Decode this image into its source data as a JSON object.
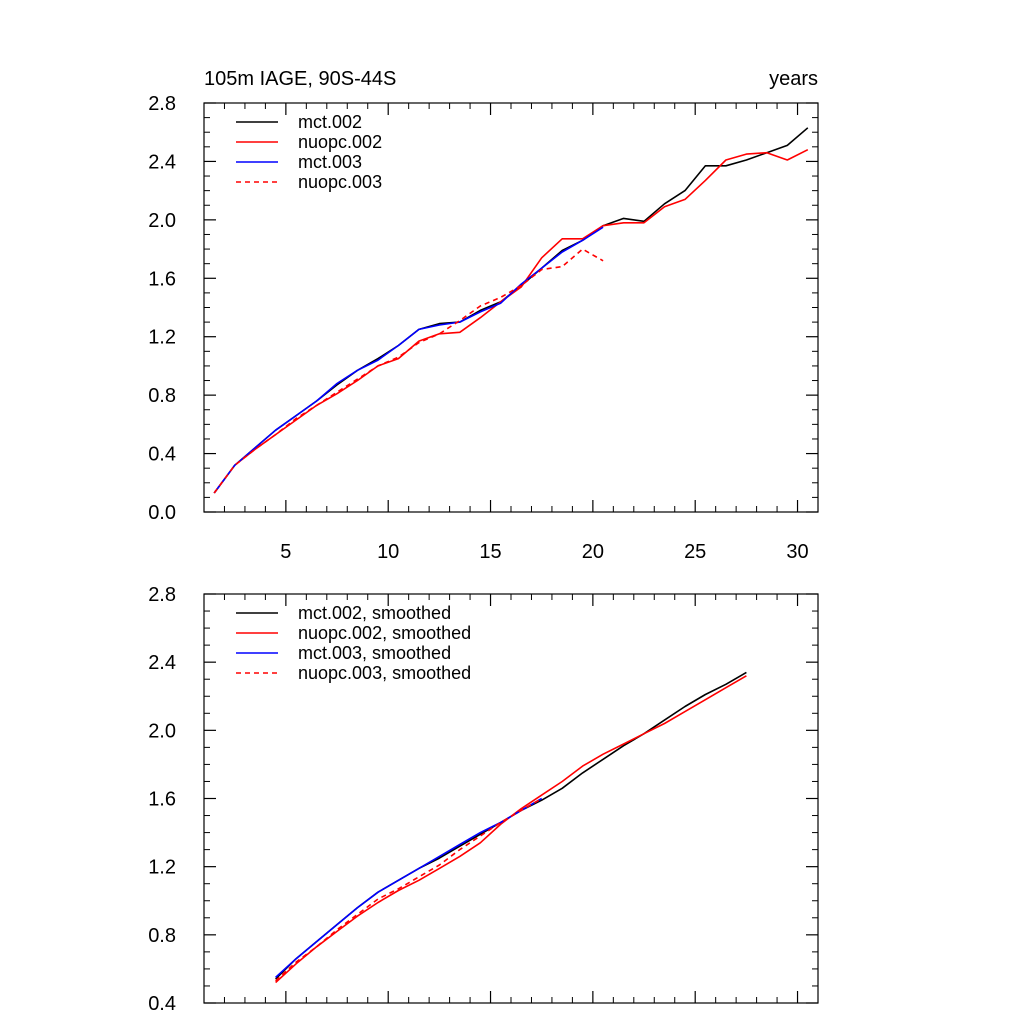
{
  "chart_data": [
    {
      "type": "line",
      "title": "105m IAGE, 90S-44S",
      "units": "years",
      "xlim": [
        1,
        31
      ],
      "ylim": [
        0.0,
        2.8
      ],
      "xticks": [
        5,
        10,
        15,
        20,
        25,
        30
      ],
      "yticks": [
        0.0,
        0.4,
        0.8,
        1.2,
        1.6,
        2.0,
        2.4,
        2.8
      ],
      "ytick_labels": [
        "0.0",
        "0.4",
        "0.8",
        "1.2",
        "1.6",
        "2.0",
        "2.4",
        "2.8"
      ],
      "xtick_labels": [
        "5",
        "10",
        "15",
        "20",
        "25",
        "30"
      ],
      "legend_position": "top-left",
      "series": [
        {
          "name": "mct.002",
          "color": "#000000",
          "dash": "solid",
          "x": [
            1.5,
            2.5,
            3.5,
            4.5,
            5.5,
            6.5,
            7.5,
            8.5,
            9.5,
            10.5,
            11.5,
            12.5,
            13.5,
            14.5,
            15.5,
            16.5,
            17.5,
            18.5,
            19.5,
            20.5,
            21.5,
            22.5,
            23.5,
            24.5,
            25.5,
            26.5,
            27.5,
            28.5,
            29.5,
            30.5
          ],
          "y": [
            0.13,
            0.32,
            0.44,
            0.56,
            0.66,
            0.76,
            0.87,
            0.97,
            1.05,
            1.14,
            1.25,
            1.29,
            1.3,
            1.38,
            1.44,
            1.55,
            1.67,
            1.79,
            1.86,
            1.96,
            2.01,
            1.99,
            2.11,
            2.2,
            2.37,
            2.37,
            2.41,
            2.46,
            2.51,
            2.63
          ]
        },
        {
          "name": "nuopc.002",
          "color": "#ff0000",
          "dash": "solid",
          "x": [
            1.5,
            2.5,
            3.5,
            4.5,
            5.5,
            6.5,
            7.5,
            8.5,
            9.5,
            10.5,
            11.5,
            12.5,
            13.5,
            14.5,
            15.5,
            16.5,
            17.5,
            18.5,
            19.5,
            20.5,
            21.5,
            22.5,
            23.5,
            24.5,
            25.5,
            26.5,
            27.5,
            28.5,
            29.5,
            30.5
          ],
          "y": [
            0.13,
            0.32,
            0.43,
            0.53,
            0.63,
            0.73,
            0.81,
            0.9,
            1.0,
            1.05,
            1.17,
            1.22,
            1.23,
            1.33,
            1.44,
            1.54,
            1.74,
            1.87,
            1.87,
            1.96,
            1.98,
            1.98,
            2.09,
            2.14,
            2.27,
            2.41,
            2.45,
            2.46,
            2.41,
            2.48
          ]
        },
        {
          "name": "mct.003",
          "color": "#0000ff",
          "dash": "solid",
          "x": [
            1.5,
            2.5,
            3.5,
            4.5,
            5.5,
            6.5,
            7.5,
            8.5,
            9.5,
            10.5,
            11.5,
            12.5,
            13.5,
            14.5,
            15.5,
            16.5,
            17.5,
            18.5,
            19.5,
            20.5
          ],
          "y": [
            0.13,
            0.32,
            0.44,
            0.56,
            0.66,
            0.76,
            0.88,
            0.97,
            1.04,
            1.14,
            1.25,
            1.28,
            1.3,
            1.37,
            1.43,
            1.56,
            1.67,
            1.78,
            1.86,
            1.95
          ]
        },
        {
          "name": "nuopc.003",
          "color": "#ff0000",
          "dash": "dashed",
          "x": [
            1.5,
            2.5,
            3.5,
            4.5,
            5.5,
            6.5,
            7.5,
            8.5,
            9.5,
            10.5,
            11.5,
            12.5,
            13.5,
            14.5,
            15.5,
            16.5,
            17.5,
            18.5,
            19.5,
            20.5
          ],
          "y": [
            0.13,
            0.32,
            0.43,
            0.53,
            0.64,
            0.73,
            0.82,
            0.91,
            1.0,
            1.06,
            1.16,
            1.22,
            1.31,
            1.41,
            1.47,
            1.55,
            1.66,
            1.68,
            1.8,
            1.72
          ]
        }
      ]
    },
    {
      "type": "line",
      "xlim": [
        1,
        31
      ],
      "ylim": [
        0.4,
        2.8
      ],
      "xticks": [
        5,
        10,
        15,
        20,
        25,
        30
      ],
      "yticks": [
        0.4,
        0.8,
        1.2,
        1.6,
        2.0,
        2.4,
        2.8
      ],
      "ytick_labels": [
        "0.4",
        "0.8",
        "1.2",
        "1.6",
        "2.0",
        "2.4",
        "2.8"
      ],
      "legend_position": "top-left",
      "series": [
        {
          "name": "mct.002, smoothed",
          "color": "#000000",
          "dash": "solid",
          "x": [
            4.5,
            5.5,
            6.5,
            7.5,
            8.5,
            9.5,
            10.5,
            11.5,
            12.5,
            13.5,
            14.5,
            15.5,
            16.5,
            17.5,
            18.5,
            19.5,
            20.5,
            21.5,
            22.5,
            23.5,
            24.5,
            25.5,
            26.5,
            27.5
          ],
          "y": [
            0.54,
            0.66,
            0.76,
            0.86,
            0.96,
            1.05,
            1.12,
            1.19,
            1.25,
            1.32,
            1.39,
            1.46,
            1.53,
            1.59,
            1.66,
            1.75,
            1.83,
            1.91,
            1.98,
            2.06,
            2.14,
            2.21,
            2.27,
            2.34
          ]
        },
        {
          "name": "nuopc.002, smoothed",
          "color": "#ff0000",
          "dash": "solid",
          "x": [
            4.5,
            5.5,
            6.5,
            7.5,
            8.5,
            9.5,
            10.5,
            11.5,
            12.5,
            13.5,
            14.5,
            15.5,
            16.5,
            17.5,
            18.5,
            19.5,
            20.5,
            21.5,
            22.5,
            23.5,
            24.5,
            25.5,
            26.5,
            27.5
          ],
          "y": [
            0.52,
            0.63,
            0.73,
            0.82,
            0.91,
            0.99,
            1.06,
            1.12,
            1.19,
            1.26,
            1.34,
            1.45,
            1.54,
            1.62,
            1.7,
            1.79,
            1.86,
            1.92,
            1.98,
            2.04,
            2.11,
            2.18,
            2.25,
            2.32
          ]
        },
        {
          "name": "mct.003, smoothed",
          "color": "#0000ff",
          "dash": "solid",
          "x": [
            4.5,
            5.5,
            6.5,
            7.5,
            8.5,
            9.5,
            10.5,
            11.5,
            12.5,
            13.5,
            14.5,
            15.5,
            16.5,
            17.5
          ],
          "y": [
            0.55,
            0.66,
            0.76,
            0.86,
            0.96,
            1.05,
            1.12,
            1.19,
            1.26,
            1.33,
            1.4,
            1.46,
            1.53,
            1.6
          ]
        },
        {
          "name": "nuopc.003, smoothed",
          "color": "#ff0000",
          "dash": "dashed",
          "x": [
            4.5,
            5.5,
            6.5,
            7.5,
            8.5,
            9.5,
            10.5,
            11.5,
            12.5,
            13.5,
            14.5,
            15.5,
            16.5,
            17.5
          ],
          "y": [
            0.53,
            0.64,
            0.73,
            0.83,
            0.92,
            1.01,
            1.07,
            1.14,
            1.21,
            1.3,
            1.38,
            1.46,
            1.53,
            1.6
          ]
        }
      ]
    }
  ]
}
